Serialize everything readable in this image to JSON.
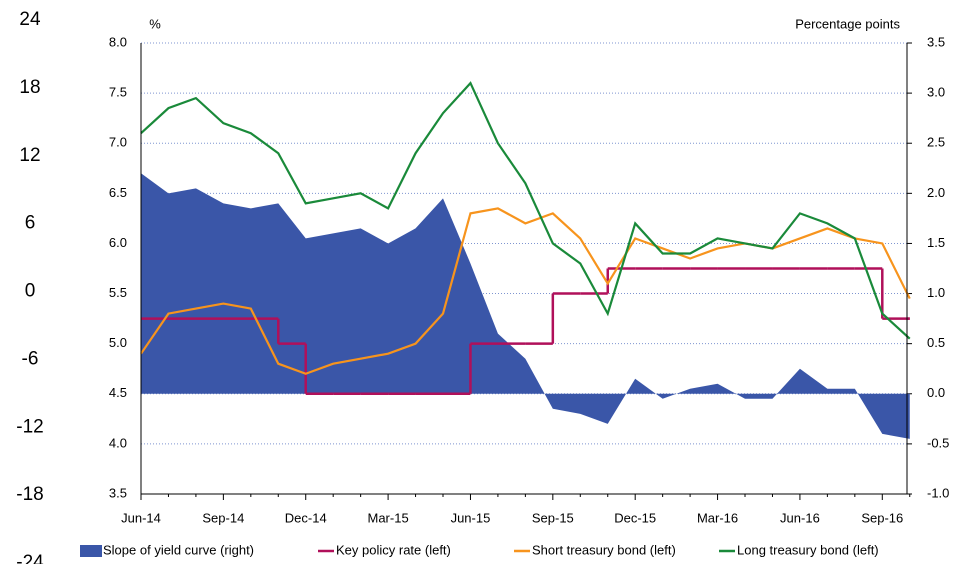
{
  "chart_data": {
    "type": "line",
    "axis_title_left": "%",
    "axis_title_right": "Percentage points",
    "categories": [
      "Jun-14",
      null,
      null,
      "Sep-14",
      null,
      null,
      "Dec-14",
      null,
      null,
      "Mar-15",
      null,
      null,
      "Jun-15",
      null,
      null,
      "Sep-15",
      null,
      null,
      "Dec-15",
      null,
      null,
      "Mar-16",
      null,
      null,
      "Jun-16",
      null,
      null,
      "Sep-16",
      null
    ],
    "xlim": [
      0,
      27.9
    ],
    "ylim": [
      3.5,
      8.0
    ],
    "yticks": [
      {
        "value": 3.5,
        "label": "3.5"
      },
      {
        "value": 4,
        "label": "4.0"
      },
      {
        "value": 4.5,
        "label": "4.5"
      },
      {
        "value": 5,
        "label": "5.0"
      },
      {
        "value": 5.5,
        "label": "5.5"
      },
      {
        "value": 6,
        "label": "6.0"
      },
      {
        "value": 6.5,
        "label": "6.5"
      },
      {
        "value": 7,
        "label": "7.0"
      },
      {
        "value": 7.5,
        "label": "7.5"
      },
      {
        "value": 8,
        "label": "8.0"
      }
    ],
    "y2lim": [
      -1.0,
      3.5
    ],
    "y2ticks": [
      {
        "value": -1,
        "label": "-1.0"
      },
      {
        "value": -0.5,
        "label": "-0.5"
      },
      {
        "value": 0,
        "label": "0.0"
      },
      {
        "value": 0.5,
        "label": "0.5"
      },
      {
        "value": 1,
        "label": "1.0"
      },
      {
        "value": 1.5,
        "label": "1.5"
      },
      {
        "value": 2,
        "label": "2.0"
      },
      {
        "value": 2.5,
        "label": "2.5"
      },
      {
        "value": 3,
        "label": "3.0"
      },
      {
        "value": 3.5,
        "label": "3.5"
      }
    ],
    "y3lim": [
      -24,
      24
    ],
    "y3ticks": [
      -24,
      -18,
      -12,
      -6,
      0,
      6,
      12,
      18,
      24
    ],
    "grid": true,
    "series": [
      {
        "name": "Slope of yield curve (right)",
        "type": "area",
        "axis": "y2",
        "color": "#3a56a8",
        "values": [
          2.2,
          2.0,
          2.05,
          1.9,
          1.85,
          1.9,
          1.55,
          1.6,
          1.65,
          1.5,
          1.65,
          1.95,
          1.3,
          0.6,
          0.35,
          -0.15,
          -0.2,
          -0.3,
          0.15,
          -0.05,
          0.05,
          0.1,
          -0.05,
          -0.05,
          0.25,
          0.05,
          0.05,
          -0.4,
          -0.45
        ]
      },
      {
        "name": "Key policy rate (left)",
        "type": "step",
        "color": "#b0105a",
        "values": [
          5.25,
          5.25,
          5.25,
          5.25,
          5.25,
          5.0,
          4.5,
          4.5,
          4.5,
          4.5,
          4.5,
          4.5,
          5.0,
          5.0,
          5.0,
          5.5,
          5.5,
          5.75,
          5.75,
          5.75,
          5.75,
          5.75,
          5.75,
          5.75,
          5.75,
          5.75,
          5.75,
          5.25,
          5.25
        ]
      },
      {
        "name": "Short treasury bond (left)",
        "type": "line",
        "color": "#f7941d",
        "values": [
          4.9,
          5.3,
          5.35,
          5.4,
          5.35,
          4.8,
          4.7,
          4.8,
          4.85,
          4.9,
          5.0,
          5.3,
          6.3,
          6.35,
          6.2,
          6.3,
          6.05,
          5.6,
          6.05,
          5.95,
          5.85,
          5.95,
          6.0,
          5.95,
          6.05,
          6.15,
          6.05,
          6.0,
          5.45
        ]
      },
      {
        "name": "Long treasury bond (left)",
        "type": "line",
        "color": "#1a8a3a",
        "values": [
          7.1,
          7.35,
          7.45,
          7.2,
          7.1,
          6.9,
          6.4,
          6.45,
          6.5,
          6.35,
          6.9,
          7.3,
          7.6,
          7.0,
          6.6,
          6.0,
          5.8,
          5.3,
          6.2,
          5.9,
          5.9,
          6.05,
          6.0,
          5.95,
          6.3,
          6.2,
          6.05,
          5.3,
          5.05
        ]
      }
    ]
  }
}
